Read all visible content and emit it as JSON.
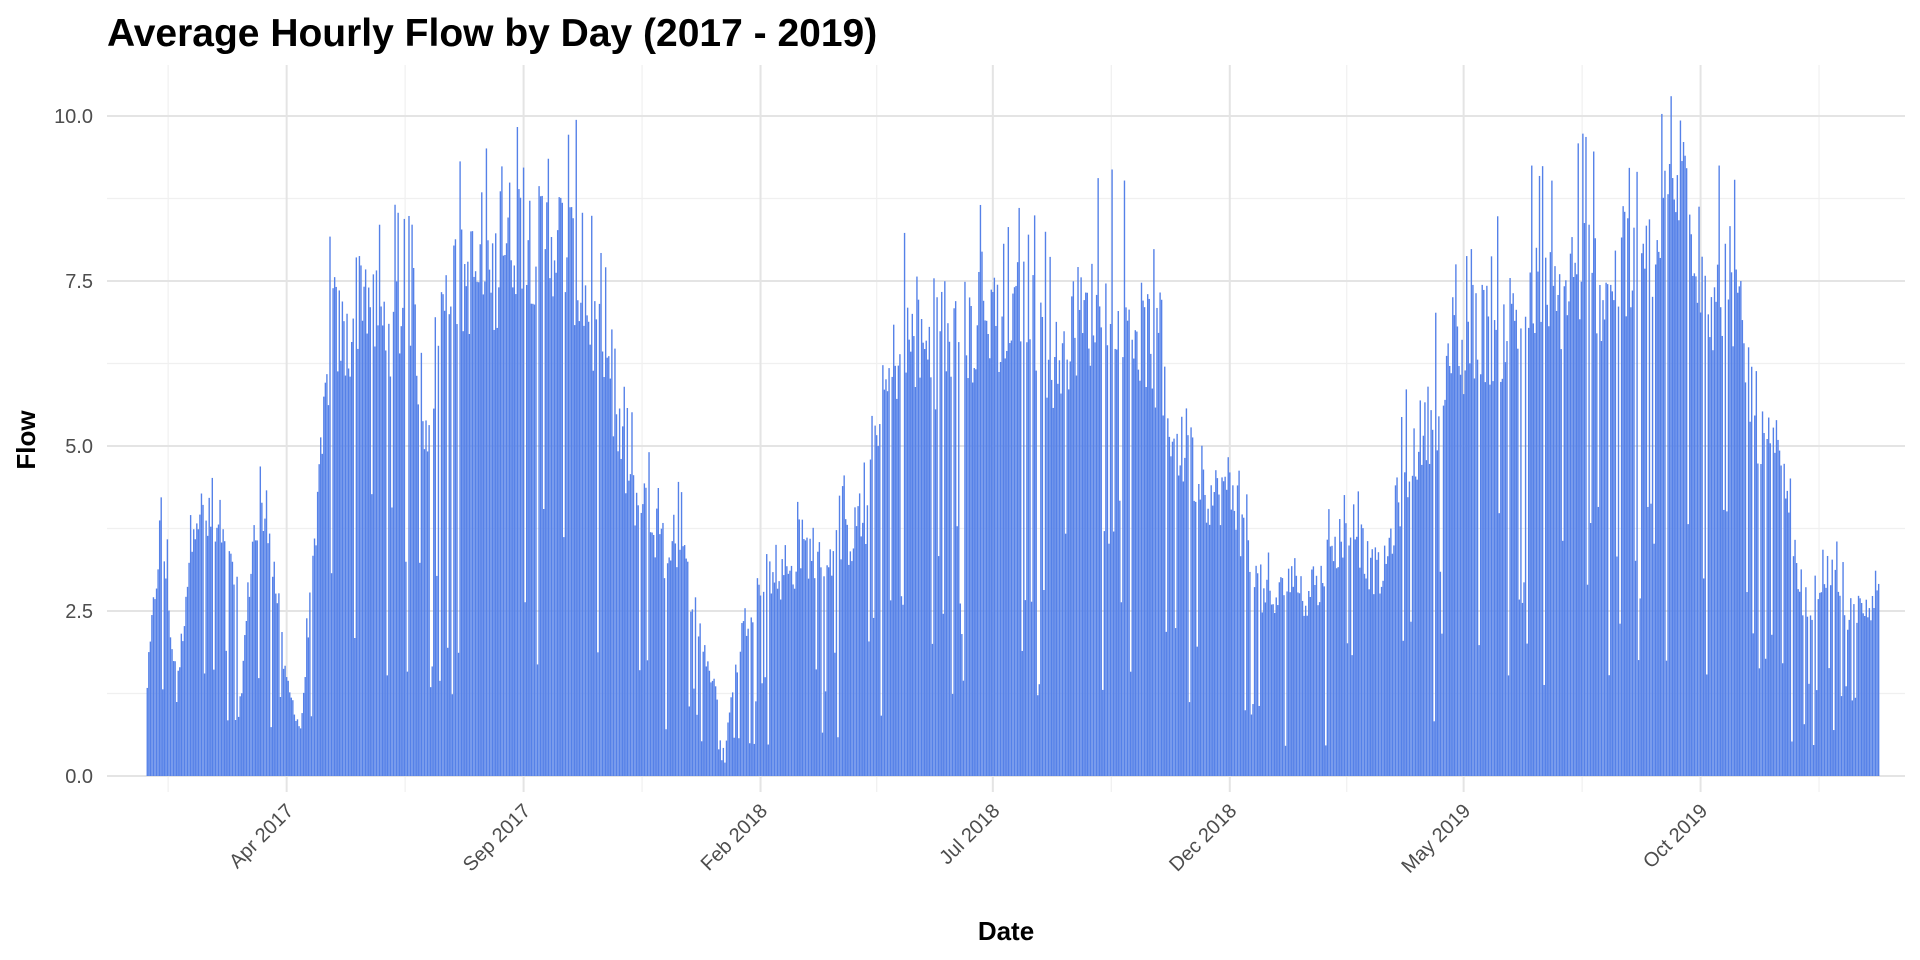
{
  "chart_data": {
    "type": "bar",
    "title": "Average Hourly Flow by Day (2017 - 2019)",
    "xlabel": "Date",
    "ylabel": "Flow",
    "x_type": "date",
    "ylim": [
      0,
      10.4
    ],
    "xlim": [
      "2016-12-06",
      "2020-02-10"
    ],
    "y_ticks": [
      0,
      2.5,
      5,
      7.5,
      10
    ],
    "y_tick_labels": [
      "0.0",
      "2.5",
      "5.0",
      "7.5",
      "10.0"
    ],
    "x_ticks": [
      "2017-04-01",
      "2017-09-01",
      "2018-02-01",
      "2018-07-01",
      "2018-12-01",
      "2019-05-01",
      "2019-10-01"
    ],
    "x_tick_labels": [
      "Apr 2017",
      "Sep 2017",
      "Feb 2018",
      "Jul 2018",
      "Dec 2018",
      "May 2019",
      "Oct 2019"
    ],
    "grid": true,
    "legend": "none",
    "bar_color": "#5581E8",
    "series": [
      {
        "values": [
          [
            "2017-01-01",
            1.4
          ],
          [
            "2017-01-10",
            3.9
          ],
          [
            "2017-01-20",
            1.2
          ],
          [
            "2017-01-31",
            4.1
          ],
          [
            "2017-02-10",
            3.8
          ],
          [
            "2017-02-20",
            3.4
          ],
          [
            "2017-02-28",
            2.8
          ],
          [
            "2017-03-01",
            0.8
          ],
          [
            "2017-03-10",
            3.6
          ],
          [
            "2017-03-20",
            4.0
          ],
          [
            "2017-03-31",
            1.5
          ],
          [
            "2017-04-10",
            0.7
          ],
          [
            "2017-04-20",
            3.6
          ],
          [
            "2017-04-30",
            6.9
          ],
          [
            "2017-05-10",
            6.5
          ],
          [
            "2017-05-20",
            7.6
          ],
          [
            "2017-05-31",
            6.8
          ],
          [
            "2017-06-10",
            6.9
          ],
          [
            "2017-06-20",
            7.3
          ],
          [
            "2017-06-30",
            5.3
          ],
          [
            "2017-07-10",
            7.0
          ],
          [
            "2017-07-20",
            7.4
          ],
          [
            "2017-07-31",
            7.6
          ],
          [
            "2017-08-10",
            7.3
          ],
          [
            "2017-08-20",
            8.1
          ],
          [
            "2017-08-31",
            8.3
          ],
          [
            "2017-09-10",
            8.0
          ],
          [
            "2017-09-20",
            8.2
          ],
          [
            "2017-09-30",
            8.0
          ],
          [
            "2017-10-10",
            7.3
          ],
          [
            "2017-10-20",
            6.4
          ],
          [
            "2017-10-31",
            5.2
          ],
          [
            "2017-11-10",
            4.3
          ],
          [
            "2017-11-20",
            4.0
          ],
          [
            "2017-11-30",
            3.3
          ],
          [
            "2017-12-10",
            3.6
          ],
          [
            "2017-12-20",
            2.6
          ],
          [
            "2017-12-31",
            1.5
          ],
          [
            "2018-01-10",
            0.6
          ],
          [
            "2018-01-20",
            2.2
          ],
          [
            "2018-01-31",
            2.9
          ],
          [
            "2018-02-10",
            3.0
          ],
          [
            "2018-02-20",
            3.0
          ],
          [
            "2018-02-28",
            3.5
          ],
          [
            "2018-03-10",
            3.2
          ],
          [
            "2018-03-20",
            3.4
          ],
          [
            "2018-03-31",
            3.6
          ],
          [
            "2018-04-10",
            3.8
          ],
          [
            "2018-04-20",
            5.5
          ],
          [
            "2018-04-30",
            6.4
          ],
          [
            "2018-05-10",
            6.6
          ],
          [
            "2018-05-20",
            6.4
          ],
          [
            "2018-05-31",
            6.2
          ],
          [
            "2018-06-10",
            6.8
          ],
          [
            "2018-06-20",
            6.6
          ],
          [
            "2018-06-30",
            7.0
          ],
          [
            "2018-07-10",
            6.6
          ],
          [
            "2018-07-20",
            6.9
          ],
          [
            "2018-07-31",
            6.8
          ],
          [
            "2018-08-10",
            6.2
          ],
          [
            "2018-08-20",
            6.7
          ],
          [
            "2018-08-31",
            6.9
          ],
          [
            "2018-09-10",
            7.4
          ],
          [
            "2018-09-20",
            7.3
          ],
          [
            "2018-09-30",
            6.8
          ],
          [
            "2018-10-10",
            6.6
          ],
          [
            "2018-10-20",
            5.6
          ],
          [
            "2018-10-31",
            4.9
          ],
          [
            "2018-11-10",
            4.6
          ],
          [
            "2018-11-20",
            4.2
          ],
          [
            "2018-11-30",
            4.4
          ],
          [
            "2018-12-10",
            3.6
          ],
          [
            "2018-12-20",
            2.8
          ],
          [
            "2018-12-31",
            2.6
          ],
          [
            "2019-01-10",
            3.1
          ],
          [
            "2019-01-20",
            2.6
          ],
          [
            "2019-01-31",
            3.0
          ],
          [
            "2019-02-10",
            3.6
          ],
          [
            "2019-02-20",
            3.8
          ],
          [
            "2019-02-28",
            3.2
          ],
          [
            "2019-03-10",
            3.0
          ],
          [
            "2019-03-20",
            4.2
          ],
          [
            "2019-03-31",
            5.0
          ],
          [
            "2019-04-10",
            5.4
          ],
          [
            "2019-04-20",
            5.9
          ],
          [
            "2019-04-30",
            6.3
          ],
          [
            "2019-05-10",
            6.9
          ],
          [
            "2019-05-20",
            6.6
          ],
          [
            "2019-05-31",
            6.9
          ],
          [
            "2019-06-10",
            7.1
          ],
          [
            "2019-06-20",
            7.3
          ],
          [
            "2019-06-30",
            7.1
          ],
          [
            "2019-07-10",
            7.6
          ],
          [
            "2019-07-20",
            7.7
          ],
          [
            "2019-07-31",
            7.4
          ],
          [
            "2019-08-10",
            7.6
          ],
          [
            "2019-08-20",
            7.5
          ],
          [
            "2019-08-31",
            7.7
          ],
          [
            "2019-09-10",
            8.4
          ],
          [
            "2019-09-20",
            9.3
          ],
          [
            "2019-09-30",
            7.8
          ],
          [
            "2019-10-10",
            7.2
          ],
          [
            "2019-10-20",
            7.6
          ],
          [
            "2019-10-31",
            6.2
          ],
          [
            "2019-11-10",
            5.0
          ],
          [
            "2019-11-20",
            4.8
          ],
          [
            "2019-11-30",
            3.3
          ],
          [
            "2019-12-10",
            2.4
          ],
          [
            "2019-12-20",
            3.2
          ],
          [
            "2019-12-31",
            2.6
          ],
          [
            "2020-01-10",
            2.3
          ],
          [
            "2020-01-20",
            2.5
          ],
          [
            "2020-01-24",
            2.9
          ]
        ]
      }
    ]
  }
}
